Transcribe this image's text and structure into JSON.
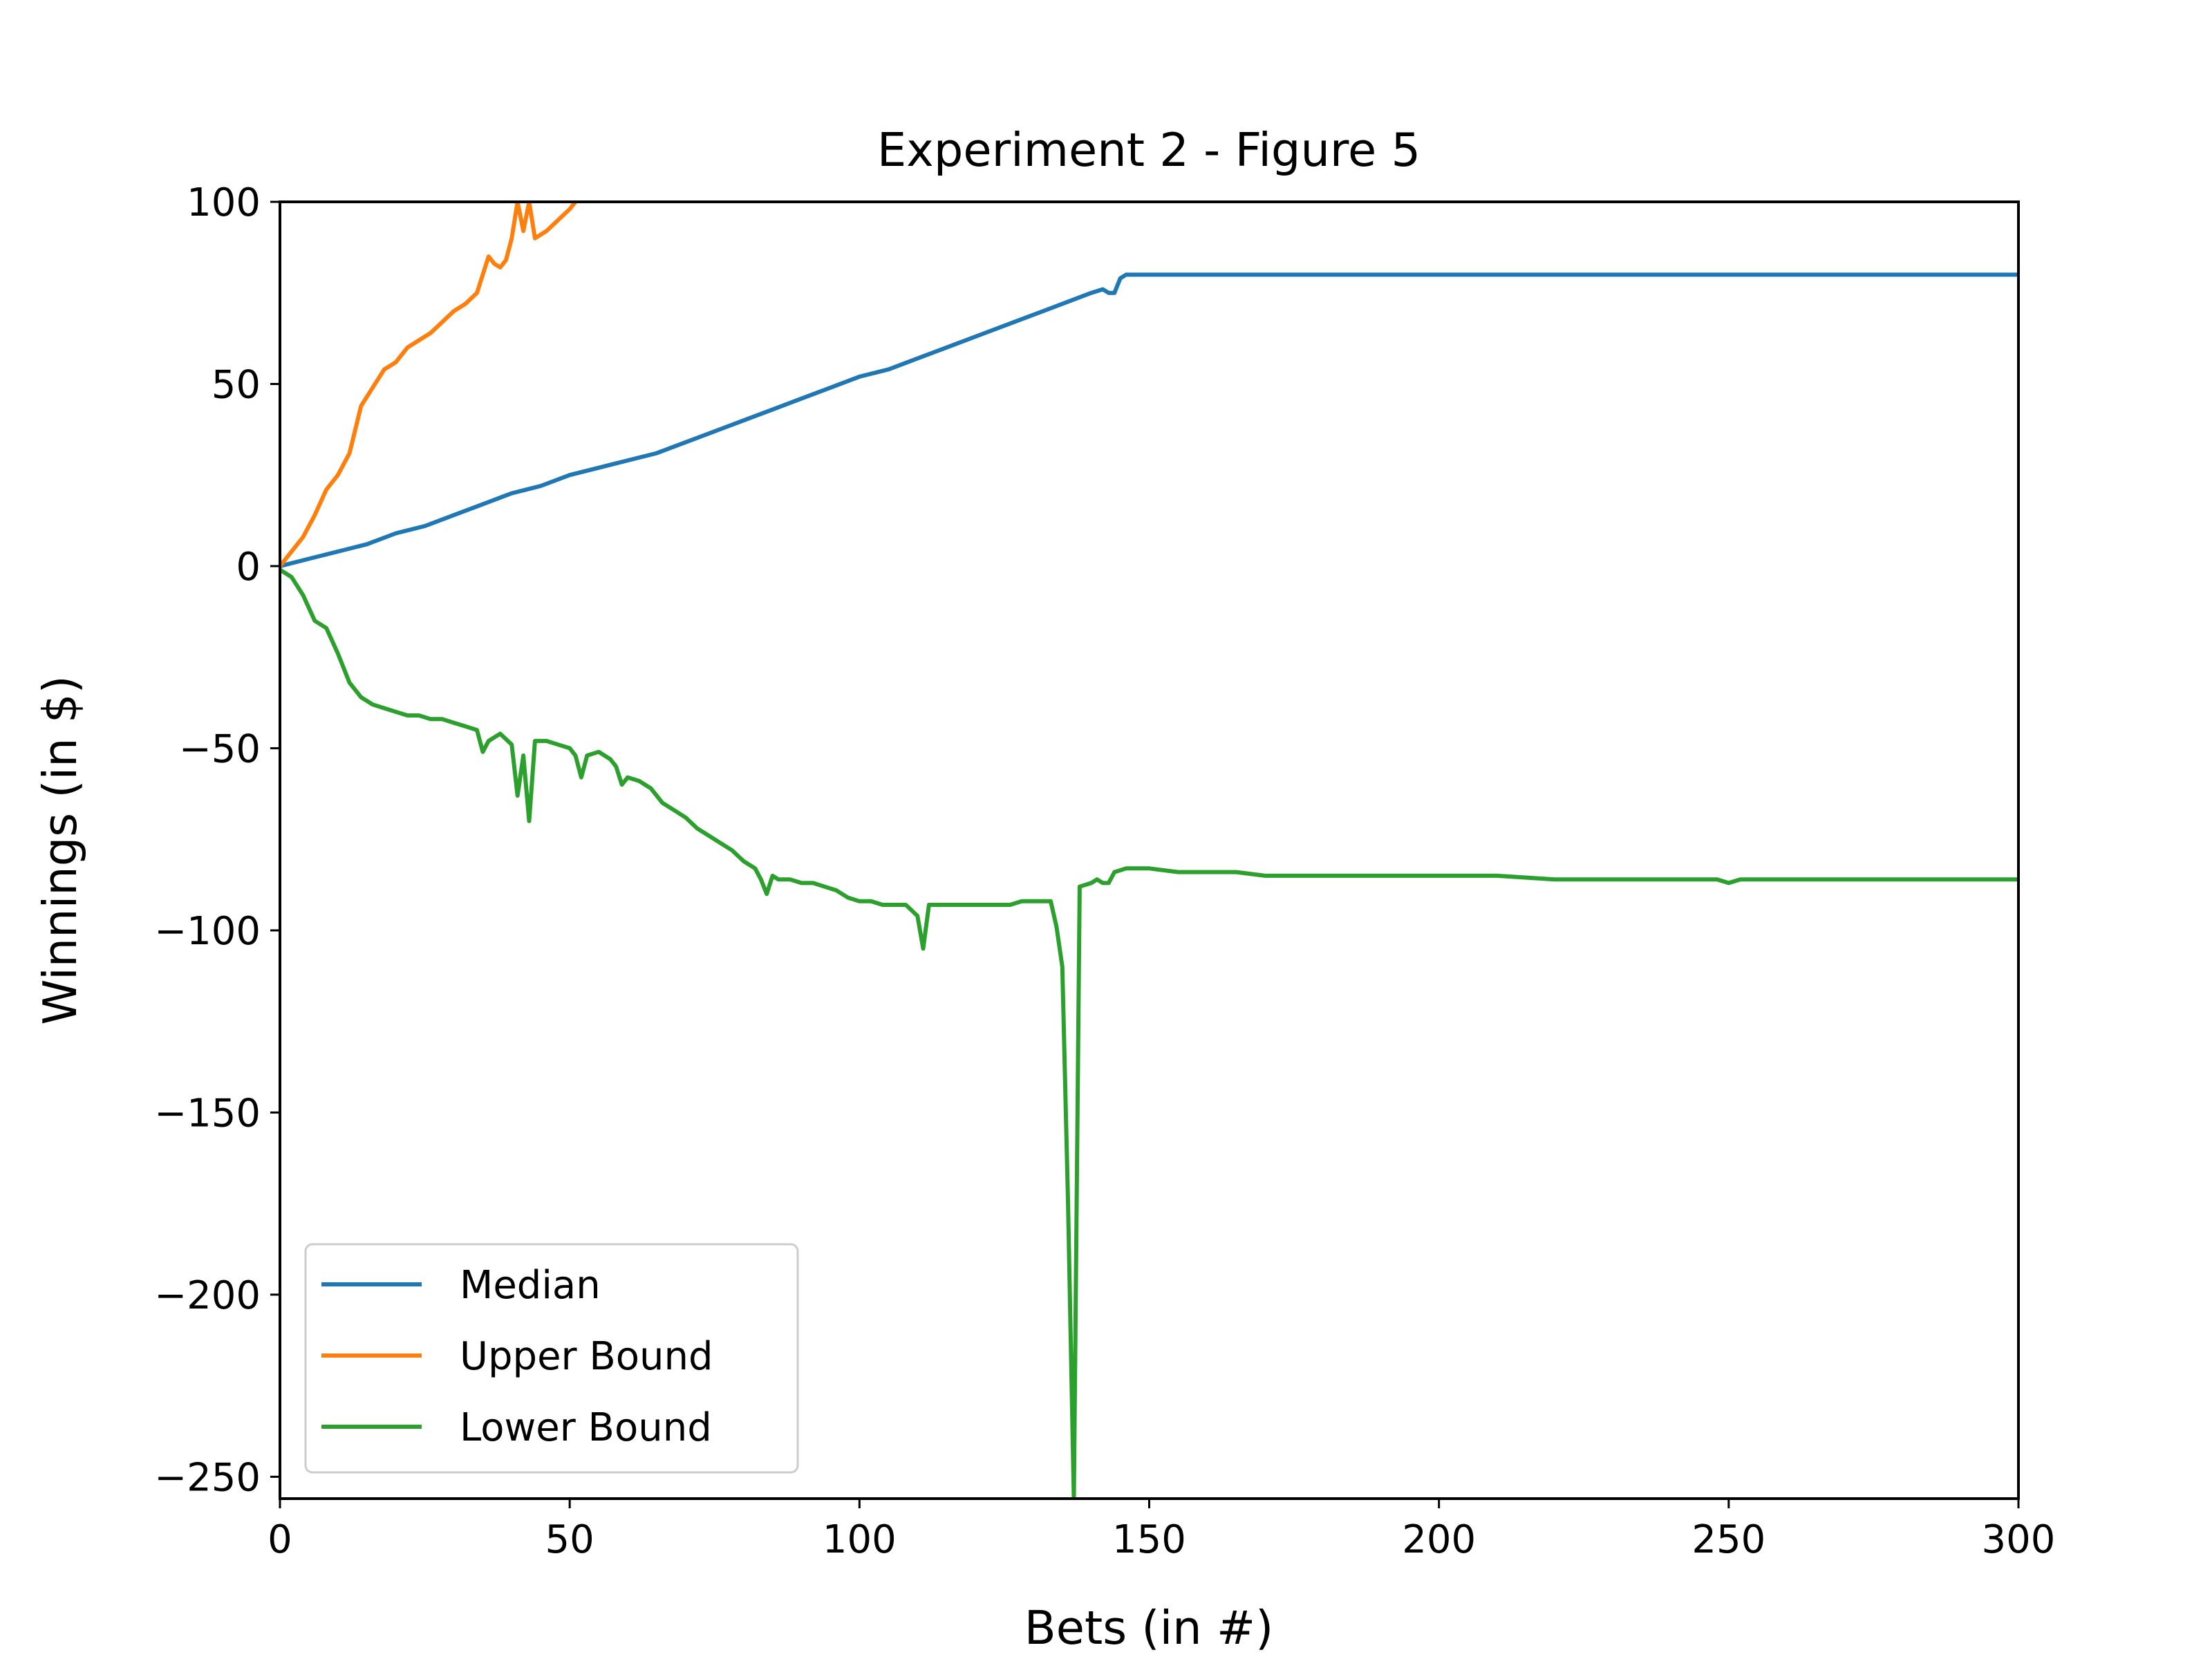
{
  "chart_data": {
    "type": "line",
    "title": "Experiment 2 - Figure 5",
    "xlabel": "Bets (in #)",
    "ylabel": "Winnings (in $)",
    "xlim": [
      0,
      300
    ],
    "ylim": [
      -256,
      100
    ],
    "x_ticks": [
      0,
      50,
      100,
      150,
      200,
      250,
      300
    ],
    "y_ticks": [
      100,
      50,
      0,
      -50,
      -100,
      -150,
      -200,
      -250
    ],
    "grid": false,
    "legend_position": "lower-left",
    "series": [
      {
        "name": "Median",
        "color": "#1f77b4",
        "points": [
          [
            0,
            0
          ],
          [
            5,
            2
          ],
          [
            10,
            4
          ],
          [
            15,
            6
          ],
          [
            20,
            9
          ],
          [
            25,
            11
          ],
          [
            30,
            14
          ],
          [
            35,
            17
          ],
          [
            40,
            20
          ],
          [
            45,
            22
          ],
          [
            50,
            25
          ],
          [
            55,
            27
          ],
          [
            60,
            29
          ],
          [
            65,
            31
          ],
          [
            70,
            34
          ],
          [
            75,
            37
          ],
          [
            80,
            40
          ],
          [
            85,
            43
          ],
          [
            90,
            46
          ],
          [
            95,
            49
          ],
          [
            100,
            52
          ],
          [
            105,
            54
          ],
          [
            110,
            57
          ],
          [
            115,
            60
          ],
          [
            120,
            63
          ],
          [
            125,
            66
          ],
          [
            130,
            69
          ],
          [
            135,
            72
          ],
          [
            140,
            75
          ],
          [
            142,
            76
          ],
          [
            143,
            75
          ],
          [
            144,
            75
          ],
          [
            145,
            79
          ],
          [
            146,
            80
          ],
          [
            150,
            80
          ],
          [
            200,
            80
          ],
          [
            250,
            80
          ],
          [
            300,
            80
          ]
        ]
      },
      {
        "name": "Upper Bound",
        "color": "#ff7f0e",
        "points": [
          [
            0,
            0
          ],
          [
            2,
            4
          ],
          [
            4,
            8
          ],
          [
            6,
            14
          ],
          [
            8,
            21
          ],
          [
            10,
            25
          ],
          [
            12,
            31
          ],
          [
            14,
            44
          ],
          [
            16,
            49
          ],
          [
            18,
            54
          ],
          [
            20,
            56
          ],
          [
            22,
            60
          ],
          [
            24,
            62
          ],
          [
            26,
            64
          ],
          [
            28,
            67
          ],
          [
            30,
            70
          ],
          [
            32,
            72
          ],
          [
            34,
            75
          ],
          [
            36,
            85
          ],
          [
            37,
            83
          ],
          [
            38,
            82
          ],
          [
            39,
            84
          ],
          [
            40,
            90
          ],
          [
            41,
            100
          ],
          [
            42,
            92
          ],
          [
            43,
            100
          ],
          [
            44,
            90
          ],
          [
            46,
            92
          ],
          [
            48,
            95
          ],
          [
            50,
            98
          ],
          [
            51,
            100
          ]
        ]
      },
      {
        "name": "Lower Bound",
        "color": "#2ca02c",
        "points": [
          [
            0,
            -1
          ],
          [
            2,
            -3
          ],
          [
            4,
            -8
          ],
          [
            6,
            -15
          ],
          [
            8,
            -17
          ],
          [
            10,
            -24
          ],
          [
            12,
            -32
          ],
          [
            14,
            -36
          ],
          [
            16,
            -38
          ],
          [
            18,
            -39
          ],
          [
            20,
            -40
          ],
          [
            22,
            -41
          ],
          [
            24,
            -41
          ],
          [
            26,
            -42
          ],
          [
            28,
            -42
          ],
          [
            30,
            -43
          ],
          [
            32,
            -44
          ],
          [
            34,
            -45
          ],
          [
            35,
            -51
          ],
          [
            36,
            -48
          ],
          [
            38,
            -46
          ],
          [
            40,
            -49
          ],
          [
            41,
            -63
          ],
          [
            42,
            -52
          ],
          [
            43,
            -70
          ],
          [
            44,
            -48
          ],
          [
            46,
            -48
          ],
          [
            48,
            -49
          ],
          [
            50,
            -50
          ],
          [
            51,
            -52
          ],
          [
            52,
            -58
          ],
          [
            53,
            -52
          ],
          [
            55,
            -51
          ],
          [
            57,
            -53
          ],
          [
            58,
            -55
          ],
          [
            59,
            -60
          ],
          [
            60,
            -58
          ],
          [
            62,
            -59
          ],
          [
            64,
            -61
          ],
          [
            66,
            -65
          ],
          [
            68,
            -67
          ],
          [
            70,
            -69
          ],
          [
            72,
            -72
          ],
          [
            74,
            -74
          ],
          [
            76,
            -76
          ],
          [
            78,
            -78
          ],
          [
            80,
            -81
          ],
          [
            82,
            -83
          ],
          [
            83,
            -86
          ],
          [
            84,
            -90
          ],
          [
            85,
            -85
          ],
          [
            86,
            -86
          ],
          [
            88,
            -86
          ],
          [
            90,
            -87
          ],
          [
            92,
            -87
          ],
          [
            94,
            -88
          ],
          [
            96,
            -89
          ],
          [
            98,
            -91
          ],
          [
            100,
            -92
          ],
          [
            102,
            -92
          ],
          [
            104,
            -93
          ],
          [
            106,
            -93
          ],
          [
            108,
            -93
          ],
          [
            110,
            -96
          ],
          [
            111,
            -105
          ],
          [
            112,
            -93
          ],
          [
            114,
            -93
          ],
          [
            116,
            -93
          ],
          [
            118,
            -93
          ],
          [
            120,
            -93
          ],
          [
            122,
            -93
          ],
          [
            124,
            -93
          ],
          [
            126,
            -93
          ],
          [
            128,
            -92
          ],
          [
            130,
            -92
          ],
          [
            132,
            -92
          ],
          [
            133,
            -92
          ],
          [
            134,
            -99
          ],
          [
            135,
            -110
          ],
          [
            136,
            -175
          ],
          [
            137,
            -256
          ],
          [
            138,
            -88
          ],
          [
            140,
            -87
          ],
          [
            141,
            -86
          ],
          [
            142,
            -87
          ],
          [
            143,
            -87
          ],
          [
            144,
            -84
          ],
          [
            146,
            -83
          ],
          [
            150,
            -83
          ],
          [
            155,
            -84
          ],
          [
            160,
            -84
          ],
          [
            165,
            -84
          ],
          [
            170,
            -85
          ],
          [
            175,
            -85
          ],
          [
            180,
            -85
          ],
          [
            190,
            -85
          ],
          [
            200,
            -85
          ],
          [
            210,
            -85
          ],
          [
            220,
            -86
          ],
          [
            230,
            -86
          ],
          [
            240,
            -86
          ],
          [
            248,
            -86
          ],
          [
            250,
            -87
          ],
          [
            252,
            -86
          ],
          [
            260,
            -86
          ],
          [
            270,
            -86
          ],
          [
            280,
            -86
          ],
          [
            290,
            -86
          ],
          [
            300,
            -86
          ]
        ]
      }
    ]
  }
}
